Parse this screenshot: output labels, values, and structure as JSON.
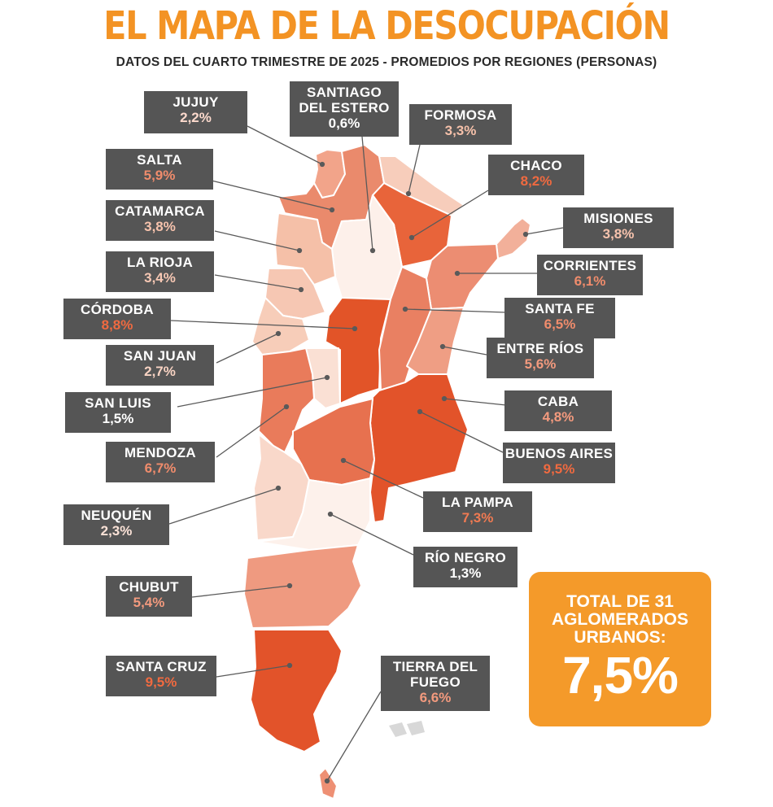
{
  "title": "EL MAPA DE LA DESOCUPACIÓN",
  "subtitle": "DATOS DEL CUARTO TRIMESTRE DE 2025 - PROMEDIOS POR REGIONES (PERSONAS)",
  "colors": {
    "title": "#f39324",
    "label_bg": "#555555",
    "value_light": "#ffffff",
    "value_orange": "#f47a4a",
    "total_bg": "#f49a2a"
  },
  "provinces": {
    "jujuy": {
      "name": "JUJUY",
      "value": "2,2%"
    },
    "santiago": {
      "name_1": "SANTIAGO",
      "name_2": "DEL ESTERO",
      "value": "0,6%"
    },
    "formosa": {
      "name": "FORMOSA",
      "value": "3,3%"
    },
    "salta": {
      "name": "SALTA",
      "value": "5,9%"
    },
    "chaco": {
      "name": "CHACO",
      "value": "8,2%"
    },
    "catamarca": {
      "name": "CATAMARCA",
      "value": "3,8%"
    },
    "misiones": {
      "name": "MISIONES",
      "value": "3,8%"
    },
    "larioja": {
      "name": "LA RIOJA",
      "value": "3,4%"
    },
    "corrientes": {
      "name": "CORRIENTES",
      "value": "6,1%"
    },
    "cordoba": {
      "name": "CÓRDOBA",
      "value": "8,8%"
    },
    "santafe": {
      "name": "SANTA FE",
      "value": "6,5%"
    },
    "sanjuan": {
      "name": "SAN JUAN",
      "value": "2,7%"
    },
    "entrerios": {
      "name": "ENTRE RÍOS",
      "value": "5,6%"
    },
    "sanluis": {
      "name": "SAN LUIS",
      "value": "1,5%"
    },
    "caba": {
      "name": "CABA",
      "value": "4,8%"
    },
    "mendoza": {
      "name": "MENDOZA",
      "value": "6,7%"
    },
    "buenosaires": {
      "name": "BUENOS AIRES",
      "value": "9,5%"
    },
    "lapampa": {
      "name": "LA PAMPA",
      "value": "7,3%"
    },
    "neuquen": {
      "name": "NEUQUÉN",
      "value": "2,3%"
    },
    "rionegro": {
      "name": "RÍO NEGRO",
      "value": "1,3%"
    },
    "chubut": {
      "name": "CHUBUT",
      "value": "5,4%"
    },
    "santacruz": {
      "name": "SANTA CRUZ",
      "value": "9,5%"
    },
    "tierradelfuego": {
      "name_1": "TIERRA DEL",
      "name_2": "FUEGO",
      "value": "6,6%"
    }
  },
  "total": {
    "line1": "TOTAL DE 31",
    "line2": "AGLOMERADOS",
    "line3": "URBANOS:",
    "value": "7,5%"
  }
}
